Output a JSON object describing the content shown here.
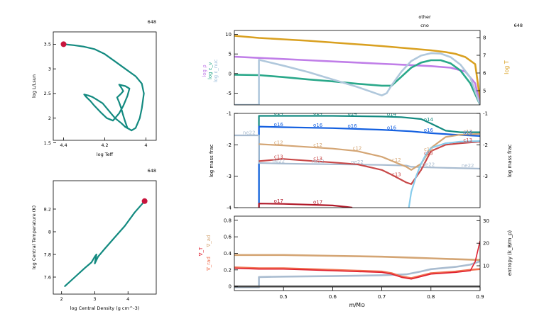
{
  "chart_data": [
    {
      "type": "line",
      "id": "hr",
      "model_number": "648",
      "xlabel": "log Teff",
      "ylabel": "log L/Lsun",
      "xlim": [
        4.45,
        3.95
      ],
      "ylim": [
        1.55,
        3.75
      ],
      "x_ticks": [
        4.4,
        4.2,
        4.0
      ],
      "y_ticks": [
        1.5,
        2.0,
        2.5,
        3.0,
        3.5
      ],
      "x_tick_labels": [
        "4.4",
        "4.2",
        "4"
      ],
      "y_tick_labels": [
        "1.5",
        "2",
        "2.5",
        "3",
        "3.5"
      ],
      "series": [
        {
          "color": "#138a80",
          "x": [
            4.07,
            4.1,
            4.12,
            4.15,
            4.17,
            4.19,
            4.21,
            4.24,
            4.26,
            4.28,
            4.3,
            4.29,
            4.27,
            4.25,
            4.22,
            4.19,
            4.16,
            4.13,
            4.11,
            4.09,
            4.08,
            4.1,
            4.13,
            4.12,
            4.11,
            4.12,
            4.14,
            4.13,
            4.12,
            4.11,
            4.1,
            4.09,
            4.07,
            4.05,
            4.03,
            4.02,
            4.01,
            4.02,
            4.05,
            4.1,
            4.15,
            4.2,
            4.25,
            4.3,
            4.35,
            4.4
          ],
          "y": [
            1.75,
            1.82,
            1.9,
            2.0,
            2.1,
            2.2,
            2.3,
            2.38,
            2.43,
            2.46,
            2.48,
            2.43,
            2.35,
            2.25,
            2.12,
            2.0,
            1.95,
            2.1,
            2.25,
            2.45,
            2.6,
            2.65,
            2.68,
            2.62,
            2.55,
            2.5,
            2.42,
            2.32,
            2.2,
            2.05,
            1.92,
            1.8,
            1.75,
            1.8,
            2.0,
            2.2,
            2.5,
            2.7,
            2.85,
            3.0,
            3.15,
            3.3,
            3.4,
            3.45,
            3.48,
            3.5
          ]
        }
      ],
      "marker": {
        "x": 4.4,
        "y": 3.5,
        "color": "#c8143c"
      }
    },
    {
      "type": "line",
      "id": "center",
      "model_number": "648",
      "xlabel": "log Central Density (g cm^-3)",
      "ylabel": "log Central Temperature (K)",
      "xlim": [
        1.75,
        4.85
      ],
      "ylim": [
        7.45,
        8.45
      ],
      "x_ticks": [
        2,
        3,
        4
      ],
      "y_ticks": [
        7.6,
        7.8,
        8.0,
        8.2
      ],
      "x_tick_labels": [
        "2",
        "3",
        "4"
      ],
      "y_tick_labels": [
        "7.6",
        "7.8",
        "8",
        "8.2"
      ],
      "series": [
        {
          "color": "#138a80",
          "x": [
            2.1,
            2.4,
            2.7,
            2.9,
            3.0,
            3.05,
            3.0,
            3.1,
            3.3,
            3.6,
            3.9,
            4.2,
            4.5
          ],
          "y": [
            7.52,
            7.6,
            7.68,
            7.73,
            7.78,
            7.8,
            7.72,
            7.78,
            7.85,
            7.95,
            8.05,
            8.17,
            8.27
          ]
        }
      ],
      "marker": {
        "x": 4.5,
        "y": 8.27,
        "color": "#c8143c"
      }
    },
    {
      "type": "line",
      "id": "top-profile",
      "model_number": "648",
      "title_line1": "other",
      "title_line2": "cno",
      "xlim": [
        0.4,
        0.9
      ],
      "ylim": [
        -8,
        11
      ],
      "y_ticks": [
        -5,
        0,
        5,
        10
      ],
      "y_tick_labels": [
        "-5",
        "0",
        "5",
        "10"
      ],
      "ylim_right": [
        4.2,
        8.4
      ],
      "y_ticks_right": [
        5,
        6,
        7,
        8
      ],
      "y_tick_labels_right": [
        "5",
        "6",
        "7",
        "8"
      ],
      "ylabel_left": [
        "log ρ",
        "log ε_ν",
        "log ε_nuc"
      ],
      "ylabel_left_colors": [
        "#c07ee8",
        "#2aa88a",
        "#9fc0dc"
      ],
      "ylabel_right": "log T",
      "ylabel_right_color": "#d9a020",
      "series": [
        {
          "name": "log T",
          "axis": "right",
          "color": "#d9a020",
          "x": [
            0.4,
            0.45,
            0.5,
            0.55,
            0.6,
            0.65,
            0.7,
            0.75,
            0.8,
            0.83,
            0.85,
            0.87,
            0.89,
            0.9
          ],
          "y": [
            8.1,
            7.98,
            7.9,
            7.82,
            7.72,
            7.62,
            7.52,
            7.4,
            7.28,
            7.18,
            7.08,
            6.9,
            6.5,
            4.5
          ]
        },
        {
          "name": "log rho",
          "axis": "left",
          "color": "#c07ee8",
          "x": [
            0.4,
            0.45,
            0.5,
            0.55,
            0.6,
            0.65,
            0.7,
            0.75,
            0.8,
            0.84,
            0.87,
            0.89,
            0.9
          ],
          "y": [
            4.3,
            4.0,
            3.7,
            3.4,
            3.1,
            2.8,
            2.5,
            2.2,
            1.9,
            1.5,
            0.5,
            -2.5,
            -8
          ]
        },
        {
          "name": "log eps_nu",
          "axis": "left",
          "color": "#2aa88a",
          "x": [
            0.4,
            0.45,
            0.5,
            0.55,
            0.6,
            0.65,
            0.7,
            0.72,
            0.74,
            0.76,
            0.78,
            0.8,
            0.82,
            0.84,
            0.86,
            0.88,
            0.9
          ],
          "y": [
            -0.3,
            -0.4,
            -0.9,
            -1.5,
            -2.0,
            -2.6,
            -3.1,
            -3.1,
            -0.8,
            1.5,
            2.8,
            3.4,
            3.4,
            2.6,
            0.8,
            -2.5,
            -8
          ]
        },
        {
          "name": "log eps_nuc",
          "axis": "left",
          "color": "#b0c8dc",
          "x": [
            0.4,
            0.45,
            0.45,
            0.5,
            0.55,
            0.6,
            0.65,
            0.7,
            0.71,
            0.72,
            0.74,
            0.76,
            0.78,
            0.8,
            0.82,
            0.84,
            0.86,
            0.88,
            0.9
          ],
          "y": [
            -8,
            -8,
            3.5,
            2.0,
            0.4,
            -1.5,
            -3.4,
            -5.6,
            -5.0,
            -3.0,
            0.5,
            3.2,
            4.6,
            5.2,
            5.1,
            4.2,
            2.3,
            -1.0,
            -8
          ]
        }
      ]
    },
    {
      "type": "line",
      "id": "abundance",
      "xlabel": "",
      "ylabel_left": "log mass frac",
      "ylabel_right": "log mass frac",
      "xlim": [
        0.4,
        0.9
      ],
      "ylim": [
        -4,
        -1
      ],
      "y_ticks": [
        -4,
        -3,
        -2,
        -1
      ],
      "y_tick_labels": [
        "-4",
        "-3",
        "-2",
        "-1"
      ],
      "y_ticks_right": [
        -1,
        -2,
        -3
      ],
      "y_tick_labels_right": [
        "-1",
        "-2",
        "-3"
      ],
      "series": [
        {
          "name": "o14",
          "color": "#138a80",
          "x": [
            0.45,
            0.45,
            0.5,
            0.6,
            0.7,
            0.74,
            0.78,
            0.8,
            0.83,
            0.86,
            0.9
          ],
          "y": [
            -4,
            -1.08,
            -1.08,
            -1.08,
            -1.1,
            -1.12,
            -1.18,
            -1.32,
            -1.55,
            -1.6,
            -1.6
          ]
        },
        {
          "name": "o16",
          "color": "#1460e0",
          "x": [
            0.45,
            0.45,
            0.5,
            0.6,
            0.7,
            0.76,
            0.8,
            0.85,
            0.9
          ],
          "y": [
            -4,
            -1.42,
            -1.44,
            -1.47,
            -1.52,
            -1.57,
            -1.63,
            -1.68,
            -1.72
          ]
        },
        {
          "name": "ne22",
          "color": "#a9bcd0",
          "x": [
            0.4,
            0.45,
            0.45,
            0.5,
            0.6,
            0.7,
            0.75,
            0.76,
            0.8,
            0.85,
            0.9
          ],
          "y": [
            -1.7,
            -1.7,
            -2.58,
            -2.6,
            -2.62,
            -2.64,
            -2.66,
            -2.7,
            -2.72,
            -2.74,
            -2.76
          ]
        },
        {
          "name": "c12",
          "color": "#d4a574",
          "x": [
            0.45,
            0.5,
            0.6,
            0.65,
            0.7,
            0.75,
            0.76,
            0.78,
            0.8,
            0.83,
            0.86,
            0.9
          ],
          "y": [
            -1.98,
            -2.02,
            -2.12,
            -2.2,
            -2.38,
            -2.7,
            -2.8,
            -2.6,
            -2.1,
            -1.75,
            -1.68,
            -1.65
          ]
        },
        {
          "name": "c13",
          "color": "#c84848",
          "x": [
            0.45,
            0.5,
            0.6,
            0.65,
            0.7,
            0.72,
            0.75,
            0.76,
            0.78,
            0.8,
            0.83,
            0.86,
            0.9
          ],
          "y": [
            -2.52,
            -2.45,
            -2.56,
            -2.62,
            -2.8,
            -2.95,
            -3.2,
            -3.25,
            -2.8,
            -2.2,
            -2.0,
            -1.95,
            -1.9
          ]
        },
        {
          "name": "n14",
          "color": "#88ccec",
          "x": [
            0.755,
            0.76,
            0.77,
            0.78,
            0.79,
            0.8,
            0.83,
            0.86,
            0.9
          ],
          "y": [
            -4,
            -3.5,
            -3.0,
            -2.6,
            -2.3,
            -2.1,
            -1.95,
            -1.9,
            -1.88
          ]
        },
        {
          "name": "o17",
          "color": "#b01828",
          "x": [
            0.45,
            0.45,
            0.5,
            0.6,
            0.63,
            0.64
          ],
          "y": [
            -4,
            -3.87,
            -3.88,
            -3.93,
            -3.98,
            -4
          ]
        }
      ],
      "labels": [
        {
          "text": "o14",
          "color": "#138a80",
          "x": [
            0.49,
            0.57,
            0.64,
            0.72,
            0.795
          ]
        },
        {
          "text": "o16",
          "color": "#1460e0",
          "x": [
            0.49,
            0.57,
            0.64,
            0.72,
            0.795,
            0.875
          ]
        },
        {
          "text": "ne22",
          "color": "#a9bcd0",
          "x": [
            0.43,
            0.49,
            0.57,
            0.65,
            0.795,
            0.875
          ]
        },
        {
          "text": "c12",
          "color": "#d4a574",
          "x": [
            0.49,
            0.57,
            0.65,
            0.73,
            0.795,
            0.875
          ]
        },
        {
          "text": "c13",
          "color": "#c84848",
          "x": [
            0.49,
            0.57,
            0.73,
            0.795,
            0.875
          ]
        },
        {
          "text": "o17",
          "color": "#b01828",
          "x": [
            0.49,
            0.57
          ]
        }
      ]
    },
    {
      "type": "line",
      "id": "gradients",
      "xlabel": "m/M⊙",
      "xlim": [
        0.4,
        0.9
      ],
      "x_ticks": [
        0.5,
        0.6,
        0.7,
        0.8,
        0.9
      ],
      "x_tick_labels": [
        "0.5",
        "0.6",
        "0.7",
        "0.8",
        "0.9"
      ],
      "ylim": [
        -0.05,
        0.85
      ],
      "y_ticks": [
        0,
        0.2,
        0.4,
        0.6,
        0.8
      ],
      "y_tick_labels": [
        "0",
        "0.2",
        "0.4",
        "0.6",
        "0.8"
      ],
      "ylim_right": [
        -1,
        32
      ],
      "y_ticks_right": [
        10,
        20,
        30
      ],
      "y_tick_labels_right": [
        "10",
        "20",
        "30"
      ],
      "ylabel_left": [
        "∇_ad",
        "∇_T",
        "∇_rad"
      ],
      "ylabel_left_colors": [
        "#d4a574",
        "#e02030",
        "#f07050"
      ],
      "ylabel_right": "entropy (k_B/m_p)",
      "series": [
        {
          "name": "grad_ad",
          "axis": "left",
          "color": "#d4a574",
          "x": [
            0.4,
            0.5,
            0.6,
            0.7,
            0.75,
            0.8,
            0.85,
            0.9
          ],
          "y": [
            0.38,
            0.38,
            0.37,
            0.36,
            0.35,
            0.34,
            0.33,
            0.32
          ]
        },
        {
          "name": "entropy",
          "axis": "right",
          "color": "#a9bcd0",
          "x": [
            0.4,
            0.45,
            0.45,
            0.5,
            0.6,
            0.7,
            0.75,
            0.78,
            0.8,
            0.85,
            0.88,
            0.9
          ],
          "y": [
            0.5,
            0.5,
            5.0,
            5.2,
            5.4,
            5.8,
            6.2,
            7.5,
            8.5,
            9.5,
            10.5,
            12
          ]
        },
        {
          "name": "grad_rad",
          "axis": "left",
          "color": "#f07050",
          "x": [
            0.4,
            0.45,
            0.5,
            0.55,
            0.6,
            0.65,
            0.7,
            0.72,
            0.74,
            0.76,
            0.78,
            0.8,
            0.85,
            0.88,
            0.9
          ],
          "y": [
            0.23,
            0.22,
            0.22,
            0.21,
            0.2,
            0.19,
            0.18,
            0.16,
            0.12,
            0.1,
            0.13,
            0.16,
            0.18,
            0.2,
            0.21
          ]
        },
        {
          "name": "grad_T",
          "axis": "left",
          "color": "#e02030",
          "x": [
            0.4,
            0.45,
            0.5,
            0.55,
            0.6,
            0.65,
            0.7,
            0.72,
            0.74,
            0.76,
            0.78,
            0.8,
            0.85,
            0.88,
            0.89,
            0.9
          ],
          "y": [
            0.22,
            0.21,
            0.21,
            0.2,
            0.19,
            0.18,
            0.17,
            0.15,
            0.11,
            0.09,
            0.12,
            0.15,
            0.17,
            0.19,
            0.3,
            0.55
          ]
        },
        {
          "name": "bottom",
          "axis": "left",
          "color": "#444444",
          "x": [
            0.4,
            0.9
          ],
          "y": [
            0.0,
            0.0
          ]
        }
      ]
    }
  ]
}
